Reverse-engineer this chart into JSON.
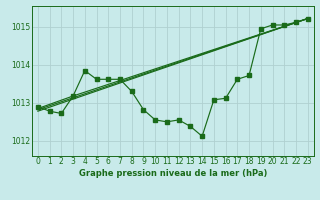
{
  "background_color": "#c8eaea",
  "grid_color": "#b0d0d0",
  "line_color": "#1a6b1a",
  "title": "Graphe pression niveau de la mer (hPa)",
  "xlim": [
    -0.5,
    23.5
  ],
  "ylim": [
    1011.6,
    1015.55
  ],
  "yticks": [
    1012,
    1013,
    1014,
    1015
  ],
  "xticks": [
    0,
    1,
    2,
    3,
    4,
    5,
    6,
    7,
    8,
    9,
    10,
    11,
    12,
    13,
    14,
    15,
    16,
    17,
    18,
    19,
    20,
    21,
    22,
    23
  ],
  "series1_x": [
    0,
    1,
    2,
    3,
    4,
    5,
    6,
    7,
    8,
    9,
    10,
    11,
    12,
    13,
    14,
    15,
    16,
    17,
    18,
    19,
    20,
    21,
    22,
    23
  ],
  "series1_y": [
    1012.9,
    1012.78,
    1012.72,
    1013.18,
    1013.85,
    1013.62,
    1013.62,
    1013.62,
    1013.3,
    1012.82,
    1012.55,
    1012.5,
    1012.55,
    1012.38,
    1012.12,
    1013.08,
    1013.12,
    1013.62,
    1013.72,
    1014.95,
    1015.05,
    1015.05,
    1015.12,
    1015.22
  ],
  "series2_x": [
    0,
    3,
    23
  ],
  "series2_y": [
    1012.85,
    1013.18,
    1015.22
  ],
  "series3_x": [
    0,
    23
  ],
  "series3_y": [
    1012.82,
    1015.22
  ],
  "series4_x": [
    0,
    23
  ],
  "series4_y": [
    1012.78,
    1015.22
  ]
}
